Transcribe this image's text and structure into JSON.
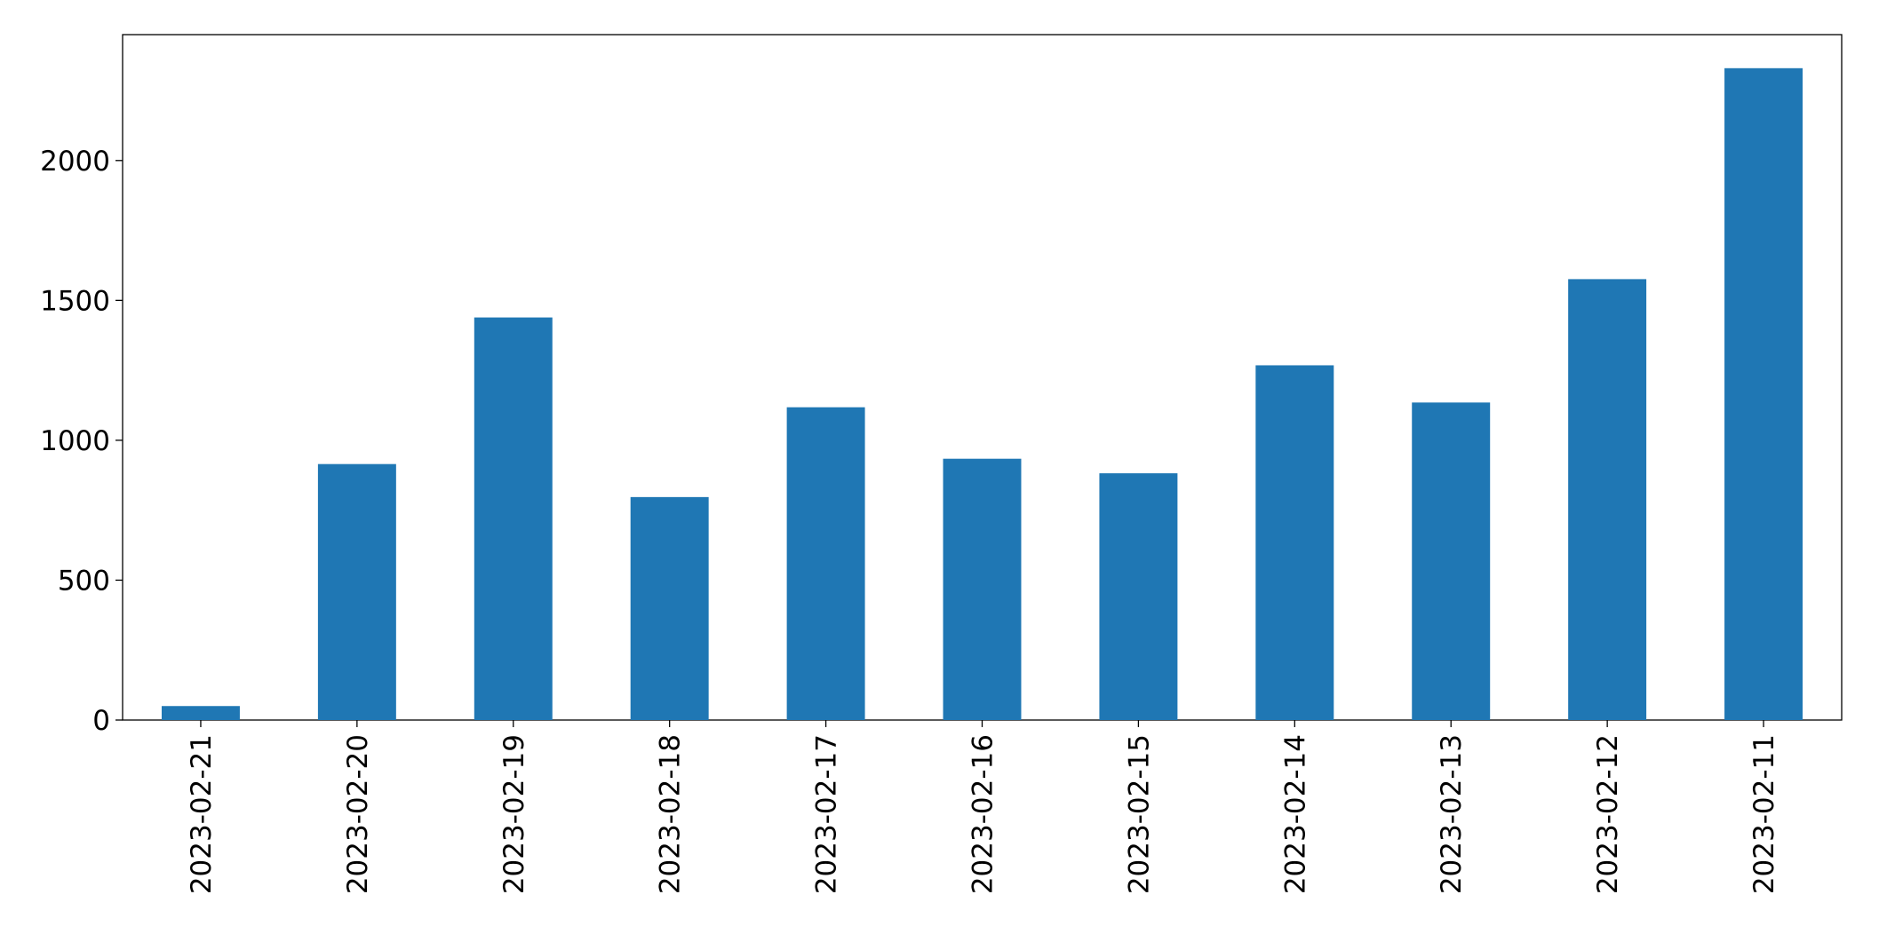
{
  "chart_data": {
    "type": "bar",
    "categories": [
      "2023-02-21",
      "2023-02-20",
      "2023-02-19",
      "2023-02-18",
      "2023-02-17",
      "2023-02-16",
      "2023-02-15",
      "2023-02-14",
      "2023-02-13",
      "2023-02-12",
      "2023-02-11"
    ],
    "values": [
      50,
      915,
      1439,
      797,
      1118,
      934,
      882,
      1268,
      1135,
      1576,
      2330
    ],
    "color": "#1f77b4",
    "ylim": [
      0,
      2450
    ],
    "yticks": [
      0,
      500,
      1000,
      1500,
      2000
    ],
    "grid": false
  }
}
